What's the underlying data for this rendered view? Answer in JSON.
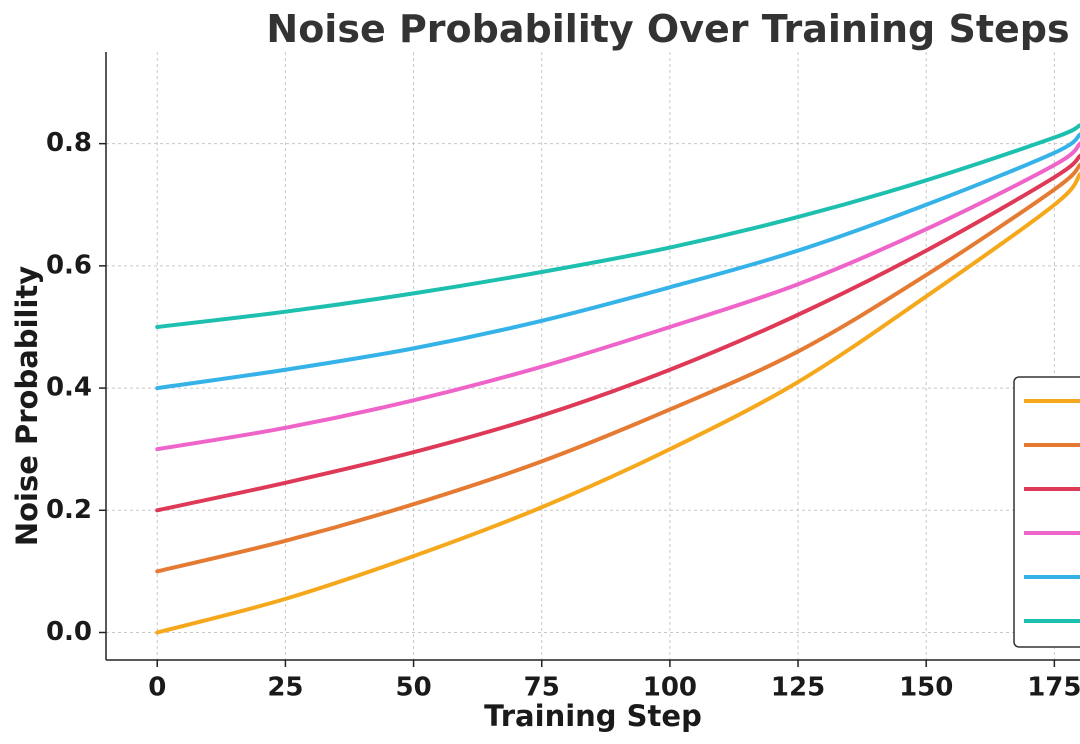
{
  "chart_data": {
    "type": "line",
    "title": "Noise Probability Over Training Steps",
    "xlabel": "Training Step",
    "ylabel": "Noise Probability",
    "xlim": [
      -10,
      180
    ],
    "ylim": [
      -0.045,
      0.95
    ],
    "xticks": [
      0,
      25,
      50,
      75,
      100,
      125,
      150,
      175
    ],
    "xtick_labels": [
      "0",
      "25",
      "50",
      "75",
      "100",
      "125",
      "150",
      "175"
    ],
    "yticks": [
      0.0,
      0.2,
      0.4,
      0.6,
      0.8
    ],
    "ytick_labels": [
      "0.0",
      "0.2",
      "0.4",
      "0.6",
      "0.8"
    ],
    "grid": true,
    "legend_position": "lower-right",
    "x": [
      0,
      25,
      50,
      75,
      100,
      125,
      150,
      175,
      180
    ],
    "series": [
      {
        "color": "#F5A81C",
        "values": [
          0.0,
          0.055,
          0.125,
          0.205,
          0.3,
          0.41,
          0.55,
          0.7,
          0.75
        ]
      },
      {
        "color": "#E57B33",
        "values": [
          0.1,
          0.15,
          0.21,
          0.28,
          0.365,
          0.46,
          0.585,
          0.725,
          0.765
        ]
      },
      {
        "color": "#DE3A57",
        "values": [
          0.2,
          0.245,
          0.295,
          0.355,
          0.43,
          0.52,
          0.625,
          0.745,
          0.78
        ]
      },
      {
        "color": "#EE64C9",
        "values": [
          0.3,
          0.335,
          0.38,
          0.435,
          0.5,
          0.57,
          0.66,
          0.765,
          0.8
        ]
      },
      {
        "color": "#35B3E8",
        "values": [
          0.4,
          0.43,
          0.465,
          0.51,
          0.565,
          0.625,
          0.7,
          0.785,
          0.815
        ]
      },
      {
        "color": "#1DBFAF",
        "values": [
          0.5,
          0.525,
          0.555,
          0.59,
          0.63,
          0.68,
          0.74,
          0.81,
          0.83
        ]
      }
    ]
  }
}
